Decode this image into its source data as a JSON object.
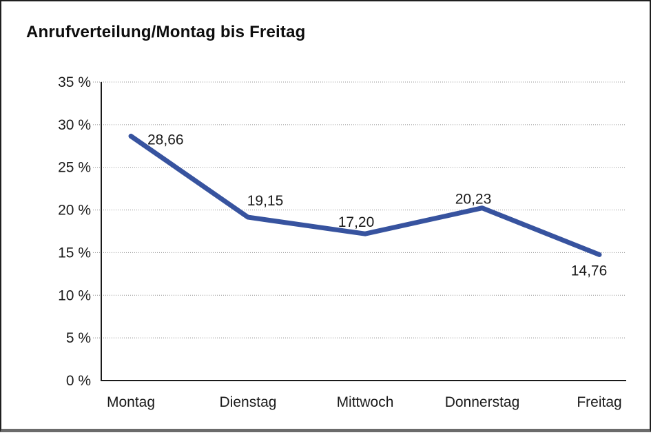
{
  "chart_data": {
    "type": "line",
    "title": "Anrufverteilung/Montag bis Freitag",
    "categories": [
      "Montag",
      "Dienstag",
      "Mittwoch",
      "Donnerstag",
      "Freitag"
    ],
    "series": [
      {
        "name": "Anrufverteilung",
        "values": [
          28.66,
          19.15,
          17.2,
          20.23,
          14.76
        ]
      }
    ],
    "point_labels": [
      "28,66",
      "19,15",
      "17,20",
      "20,23",
      "14,76"
    ],
    "xlabel": "",
    "ylabel": "",
    "ylim": [
      0,
      35
    ],
    "ytick_step": 5,
    "ytick_labels": [
      "0 %",
      "5 %",
      "10 %",
      "15 %",
      "20 %",
      "25 %",
      "30 %",
      "35 %"
    ],
    "grid": "horizontal-dotted",
    "legend": "none",
    "colors": {
      "line": "#37539F",
      "axis": "#1a1a1a",
      "gridline": "#8f8f8f",
      "tick_text": "#1a1a1a",
      "data_label_text": "#1a1a1a"
    }
  }
}
